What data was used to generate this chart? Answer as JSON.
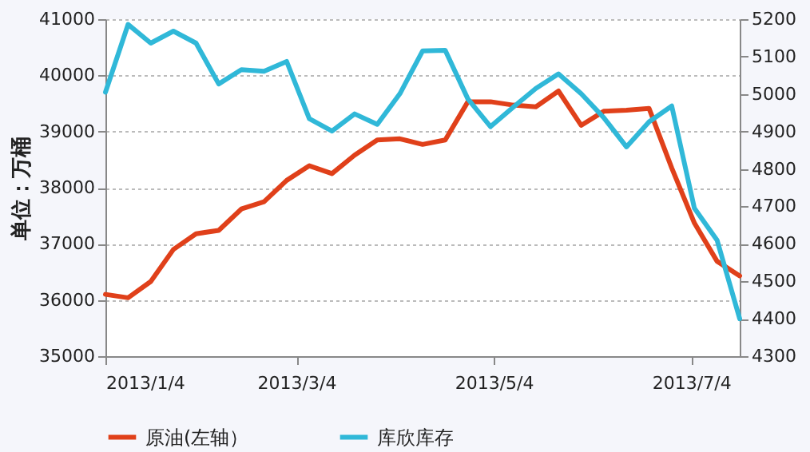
{
  "chart_data": {
    "type": "line",
    "ylabel": "单位：万桶",
    "x": [
      "2013-01-04",
      "2013-01-11",
      "2013-01-18",
      "2013-01-25",
      "2013-02-01",
      "2013-02-08",
      "2013-02-15",
      "2013-02-22",
      "2013-03-01",
      "2013-03-08",
      "2013-03-15",
      "2013-03-22",
      "2013-03-29",
      "2013-04-05",
      "2013-04-12",
      "2013-04-19",
      "2013-04-26",
      "2013-05-03",
      "2013-05-10",
      "2013-05-17",
      "2013-05-24",
      "2013-05-31",
      "2013-06-07",
      "2013-06-14",
      "2013-06-21",
      "2013-06-28",
      "2013-07-05",
      "2013-07-12",
      "2013-07-19"
    ],
    "series": [
      {
        "name": "原油(左轴）",
        "color": "#e0401a",
        "values": [
          36100,
          36040,
          36330,
          36900,
          37180,
          37240,
          37620,
          37750,
          38130,
          38390,
          38250,
          38580,
          38850,
          38870,
          38770,
          38850,
          39530,
          39530,
          39470,
          39440,
          39720,
          39110,
          39360,
          39380,
          39410,
          38350,
          37370,
          36690,
          36430
        ]
      },
      {
        "name": "库欣库存",
        "color": "#30b8d8",
        "axis": "y2",
        "values": [
          5005,
          5186,
          5136,
          5168,
          5136,
          5027,
          5065,
          5061,
          5087,
          4934,
          4901,
          4947,
          4919,
          5001,
          5115,
          5117,
          4987,
          4913,
          4965,
          5015,
          5054,
          5001,
          4937,
          4859,
          4926,
          4968,
          4695,
          4610,
          4400
        ]
      }
    ],
    "xlim": [
      "2013-01-04",
      "2013-07-19"
    ],
    "xticks": [
      {
        "value": "2013-01-04",
        "label": "2013/1/4"
      },
      {
        "value": "2013-03-04",
        "label": "2013/3/4"
      },
      {
        "value": "2013-05-04",
        "label": "2013/5/4"
      },
      {
        "value": "2013-07-04",
        "label": "2013/7/4"
      }
    ],
    "ylim": [
      35000,
      41000
    ],
    "yticks": [
      35000,
      36000,
      37000,
      38000,
      39000,
      40000,
      41000
    ],
    "y2lim": [
      4300,
      5200
    ],
    "y2ticks": [
      4300,
      4400,
      4500,
      4600,
      4700,
      4800,
      4900,
      5000,
      5100,
      5200
    ],
    "grid": "y",
    "legend": "bottom",
    "marker": "none",
    "line_style": "solid"
  }
}
